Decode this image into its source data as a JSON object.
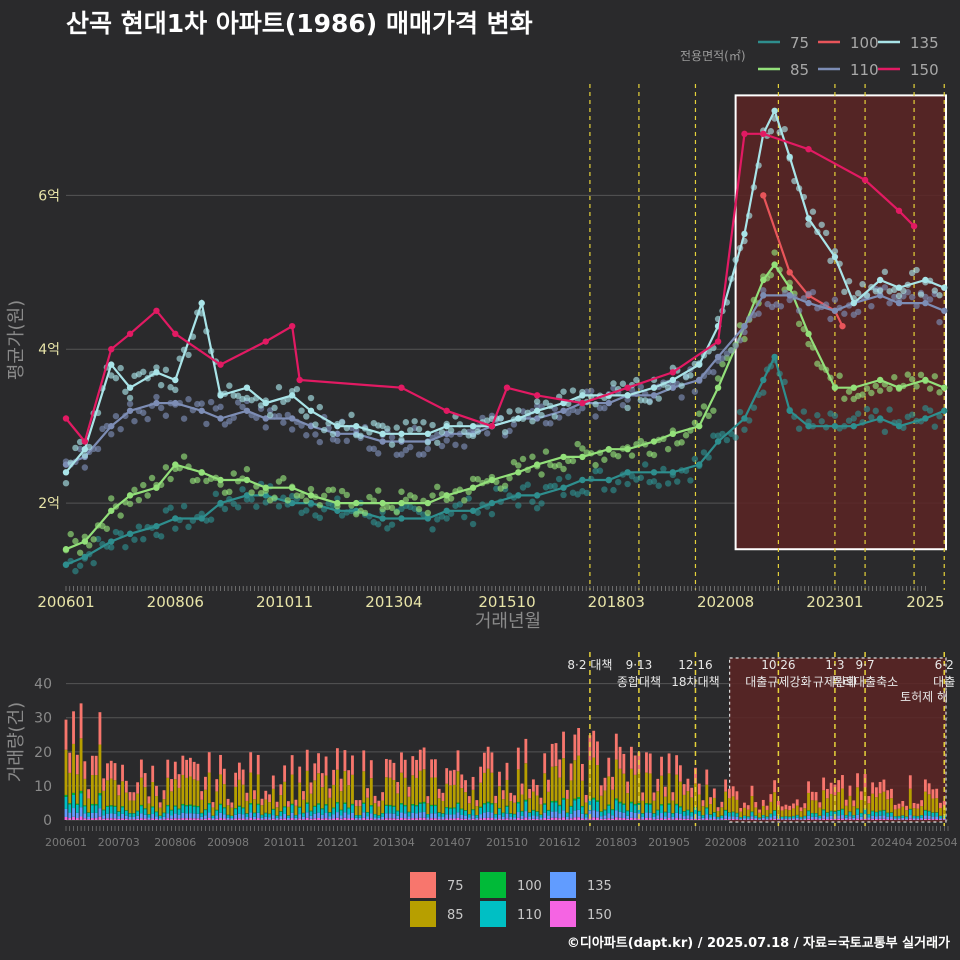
{
  "title": "산곡 현대1차 아파트(1986) 매매가격 변화",
  "footer": "©디아파트(dapt.kr) / 2025.07.18 / 자료=국토교통부 실거래가",
  "colors": {
    "background": "#2a2a2c",
    "grid": "#555555",
    "highlight_fill": "#5c2525",
    "policy_line": "#e6d23a",
    "s75": "#2e8e8e",
    "s85": "#93e07a",
    "s100": "#e8555a",
    "s110": "#7d8db5",
    "s135": "#a9e4e8",
    "s150": "#e21a63",
    "b75": "#f8766d",
    "b85": "#b79f00",
    "b100": "#00ba38",
    "b110": "#00bfc4",
    "b135": "#619cff",
    "b150": "#f564e3"
  },
  "chart_data": [
    {
      "type": "line",
      "ylabel": "평균가(원)",
      "xlabel": "거래년월",
      "x_tick_labels": [
        "200601",
        "200806",
        "201011",
        "201304",
        "201510",
        "201803",
        "202008",
        "202301",
        "2025"
      ],
      "y_ticks": [
        {
          "value": 2,
          "label": "2억"
        },
        {
          "value": 4,
          "label": "4억"
        },
        {
          "value": 6,
          "label": "6억"
        }
      ],
      "y_unit": "억",
      "xlim": [
        "2006-01",
        "2025-07"
      ],
      "ylim": [
        1.0,
        7.5
      ],
      "legend_title": "전용면적(㎡)",
      "legend_position": "top-right",
      "highlight_range": [
        "2020-08",
        "2025-07"
      ],
      "series": [
        {
          "name": "75",
          "color": "#2e8e8e",
          "points": [
            [
              "2006-01",
              1.2
            ],
            [
              "2006-06",
              1.3
            ],
            [
              "2007-01",
              1.5
            ],
            [
              "2007-06",
              1.6
            ],
            [
              "2008-01",
              1.7
            ],
            [
              "2008-06",
              1.8
            ],
            [
              "2009-01",
              1.8
            ],
            [
              "2009-06",
              2.0
            ],
            [
              "2010-01",
              2.1
            ],
            [
              "2010-06",
              2.1
            ],
            [
              "2011-01",
              2.0
            ],
            [
              "2011-06",
              2.0
            ],
            [
              "2012-01",
              1.9
            ],
            [
              "2012-06",
              1.9
            ],
            [
              "2013-01",
              1.8
            ],
            [
              "2013-06",
              1.8
            ],
            [
              "2014-01",
              1.8
            ],
            [
              "2014-06",
              1.9
            ],
            [
              "2015-01",
              1.9
            ],
            [
              "2015-06",
              2.0
            ],
            [
              "2016-01",
              2.1
            ],
            [
              "2016-06",
              2.1
            ],
            [
              "2017-01",
              2.2
            ],
            [
              "2017-06",
              2.3
            ],
            [
              "2018-01",
              2.3
            ],
            [
              "2018-06",
              2.4
            ],
            [
              "2019-01",
              2.4
            ],
            [
              "2019-06",
              2.4
            ],
            [
              "2020-01",
              2.5
            ],
            [
              "2020-06",
              2.8
            ],
            [
              "2021-01",
              3.1
            ],
            [
              "2021-06",
              3.6
            ],
            [
              "2021-09",
              3.9
            ],
            [
              "2022-01",
              3.2
            ],
            [
              "2022-06",
              3.0
            ],
            [
              "2023-01",
              3.0
            ],
            [
              "2023-06",
              3.0
            ],
            [
              "2024-01",
              3.1
            ],
            [
              "2024-06",
              3.0
            ],
            [
              "2025-01",
              3.1
            ],
            [
              "2025-06",
              3.2
            ]
          ]
        },
        {
          "name": "85",
          "color": "#93e07a",
          "points": [
            [
              "2006-01",
              1.4
            ],
            [
              "2006-06",
              1.5
            ],
            [
              "2007-01",
              1.9
            ],
            [
              "2007-06",
              2.1
            ],
            [
              "2008-01",
              2.2
            ],
            [
              "2008-06",
              2.5
            ],
            [
              "2009-01",
              2.4
            ],
            [
              "2009-06",
              2.3
            ],
            [
              "2010-01",
              2.3
            ],
            [
              "2010-06",
              2.2
            ],
            [
              "2011-01",
              2.2
            ],
            [
              "2011-06",
              2.1
            ],
            [
              "2012-01",
              2.0
            ],
            [
              "2012-06",
              2.0
            ],
            [
              "2013-01",
              2.0
            ],
            [
              "2013-06",
              2.0
            ],
            [
              "2014-01",
              2.0
            ],
            [
              "2014-06",
              2.1
            ],
            [
              "2015-01",
              2.2
            ],
            [
              "2015-06",
              2.3
            ],
            [
              "2016-01",
              2.4
            ],
            [
              "2016-06",
              2.5
            ],
            [
              "2017-01",
              2.6
            ],
            [
              "2017-06",
              2.6
            ],
            [
              "2018-01",
              2.7
            ],
            [
              "2018-06",
              2.7
            ],
            [
              "2019-01",
              2.8
            ],
            [
              "2019-06",
              2.9
            ],
            [
              "2020-01",
              3.0
            ],
            [
              "2020-06",
              3.5
            ],
            [
              "2021-01",
              4.3
            ],
            [
              "2021-06",
              4.9
            ],
            [
              "2021-09",
              5.1
            ],
            [
              "2022-01",
              4.8
            ],
            [
              "2022-06",
              4.2
            ],
            [
              "2023-01",
              3.5
            ],
            [
              "2023-06",
              3.5
            ],
            [
              "2024-01",
              3.6
            ],
            [
              "2024-06",
              3.5
            ],
            [
              "2025-01",
              3.6
            ],
            [
              "2025-06",
              3.5
            ]
          ]
        },
        {
          "name": "100",
          "color": "#e8555a",
          "points": [
            [
              "2021-06",
              6.0
            ],
            [
              "2022-01",
              5.0
            ],
            [
              "2022-06",
              4.7
            ],
            [
              "2023-01",
              4.5
            ],
            [
              "2023-03",
              4.3
            ]
          ]
        },
        {
          "name": "110",
          "color": "#7d8db5",
          "points": [
            [
              "2006-01",
              2.5
            ],
            [
              "2006-06",
              2.6
            ],
            [
              "2007-01",
              3.0
            ],
            [
              "2007-06",
              3.2
            ],
            [
              "2008-01",
              3.3
            ],
            [
              "2008-06",
              3.3
            ],
            [
              "2009-01",
              3.2
            ],
            [
              "2009-06",
              3.1
            ],
            [
              "2010-01",
              3.2
            ],
            [
              "2010-06",
              3.1
            ],
            [
              "2011-01",
              3.1
            ],
            [
              "2011-06",
              3.0
            ],
            [
              "2012-01",
              2.9
            ],
            [
              "2012-06",
              2.9
            ],
            [
              "2013-01",
              2.8
            ],
            [
              "2013-06",
              2.8
            ],
            [
              "2014-01",
              2.8
            ],
            [
              "2014-06",
              2.9
            ],
            [
              "2015-01",
              2.9
            ],
            [
              "2015-06",
              3.0
            ],
            [
              "2016-01",
              3.1
            ],
            [
              "2016-06",
              3.1
            ],
            [
              "2017-01",
              3.2
            ],
            [
              "2017-06",
              3.3
            ],
            [
              "2018-01",
              3.3
            ],
            [
              "2018-06",
              3.4
            ],
            [
              "2019-01",
              3.4
            ],
            [
              "2019-06",
              3.5
            ],
            [
              "2020-01",
              3.6
            ],
            [
              "2020-06",
              3.9
            ],
            [
              "2021-01",
              4.3
            ],
            [
              "2021-06",
              4.7
            ],
            [
              "2022-01",
              4.7
            ],
            [
              "2022-06",
              4.6
            ],
            [
              "2023-01",
              4.5
            ],
            [
              "2023-06",
              4.6
            ],
            [
              "2024-01",
              4.7
            ],
            [
              "2024-06",
              4.6
            ],
            [
              "2025-01",
              4.6
            ],
            [
              "2025-06",
              4.5
            ]
          ]
        },
        {
          "name": "135",
          "color": "#a9e4e8",
          "points": [
            [
              "2006-01",
              2.4
            ],
            [
              "2006-06",
              2.7
            ],
            [
              "2007-01",
              3.8
            ],
            [
              "2007-06",
              3.5
            ],
            [
              "2008-01",
              3.7
            ],
            [
              "2008-06",
              3.6
            ],
            [
              "2009-01",
              4.6
            ],
            [
              "2009-06",
              3.4
            ],
            [
              "2010-01",
              3.5
            ],
            [
              "2010-06",
              3.3
            ],
            [
              "2011-01",
              3.4
            ],
            [
              "2011-06",
              3.2
            ],
            [
              "2012-01",
              3.0
            ],
            [
              "2012-06",
              3.0
            ],
            [
              "2013-01",
              2.9
            ],
            [
              "2013-06",
              2.9
            ],
            [
              "2014-01",
              2.9
            ],
            [
              "2014-06",
              3.0
            ],
            [
              "2015-01",
              3.0
            ],
            [
              "2015-06",
              3.0
            ],
            [
              "2016-01",
              3.1
            ],
            [
              "2016-06",
              3.2
            ],
            [
              "2017-01",
              3.3
            ],
            [
              "2017-06",
              3.4
            ],
            [
              "2018-01",
              3.4
            ],
            [
              "2018-06",
              3.4
            ],
            [
              "2019-01",
              3.5
            ],
            [
              "2019-06",
              3.6
            ],
            [
              "2020-01",
              3.8
            ],
            [
              "2020-06",
              4.3
            ],
            [
              "2021-01",
              5.5
            ],
            [
              "2021-06",
              6.8
            ],
            [
              "2021-09",
              7.1
            ],
            [
              "2022-01",
              6.5
            ],
            [
              "2022-06",
              5.7
            ],
            [
              "2023-01",
              5.2
            ],
            [
              "2023-06",
              4.6
            ],
            [
              "2024-01",
              4.9
            ],
            [
              "2024-06",
              4.8
            ],
            [
              "2025-01",
              4.9
            ],
            [
              "2025-06",
              4.8
            ]
          ]
        },
        {
          "name": "150",
          "color": "#e21a63",
          "points": [
            [
              "2006-01",
              3.1
            ],
            [
              "2006-06",
              2.8
            ],
            [
              "2007-01",
              4.0
            ],
            [
              "2007-06",
              4.2
            ],
            [
              "2008-01",
              4.5
            ],
            [
              "2008-06",
              4.2
            ],
            [
              "2009-06",
              3.8
            ],
            [
              "2010-06",
              4.1
            ],
            [
              "2011-01",
              4.3
            ],
            [
              "2011-03",
              3.6
            ],
            [
              "2013-06",
              3.5
            ],
            [
              "2014-06",
              3.2
            ],
            [
              "2015-06",
              3.0
            ],
            [
              "2015-10",
              3.5
            ],
            [
              "2016-06",
              3.4
            ],
            [
              "2017-06",
              3.3
            ],
            [
              "2018-06",
              3.5
            ],
            [
              "2019-06",
              3.7
            ],
            [
              "2020-06",
              4.1
            ],
            [
              "2021-01",
              6.8
            ],
            [
              "2021-06",
              6.8
            ],
            [
              "2022-06",
              6.6
            ],
            [
              "2023-09",
              6.2
            ],
            [
              "2024-06",
              5.8
            ],
            [
              "2024-10",
              5.6
            ]
          ]
        }
      ]
    },
    {
      "type": "bar",
      "stacked": true,
      "ylabel": "거래량(건)",
      "x_tick_labels": [
        "200601",
        "200703",
        "200806",
        "200908",
        "201011",
        "201201",
        "201304",
        "201407",
        "201510",
        "201612",
        "201803",
        "201905",
        "202008",
        "202110",
        "202301",
        "202404",
        "202504"
      ],
      "y_ticks": [
        0,
        10,
        20,
        30,
        40
      ],
      "ylim": [
        0,
        45
      ],
      "xlim": [
        "2006-01",
        "2025-07"
      ],
      "legend_position": "bottom",
      "legend": [
        "75",
        "85",
        "100",
        "110",
        "135",
        "150"
      ],
      "highlight_range": [
        "2020-08",
        "2025-07"
      ],
      "annotations": [
        {
          "date": "2017-08",
          "label": "8·2 대책"
        },
        {
          "date": "2018-09",
          "label": "9·13\n종합대책"
        },
        {
          "date": "2019-12",
          "label": "12·16\n18차대책"
        },
        {
          "date": "2021-10",
          "label": "10·26\n대출규제강화"
        },
        {
          "date": "2023-01",
          "label": "1·3\n규제완화"
        },
        {
          "date": "2023-09",
          "label": "9·7\n특례대출축소"
        },
        {
          "date": "2025-06",
          "label": "6·2\n대출"
        }
      ],
      "extra_text": [
        {
          "date": "2024-10",
          "label": "토허제 해"
        }
      ],
      "series_totals_by_year": [
        {
          "year": 2006,
          "approx": 20
        },
        {
          "year": 2007,
          "approx": 12
        },
        {
          "year": 2015,
          "approx": 14
        },
        {
          "year": 2018,
          "approx": 18
        },
        {
          "year": 2021,
          "approx": 7
        },
        {
          "year": 2024,
          "approx": 9
        }
      ]
    }
  ]
}
